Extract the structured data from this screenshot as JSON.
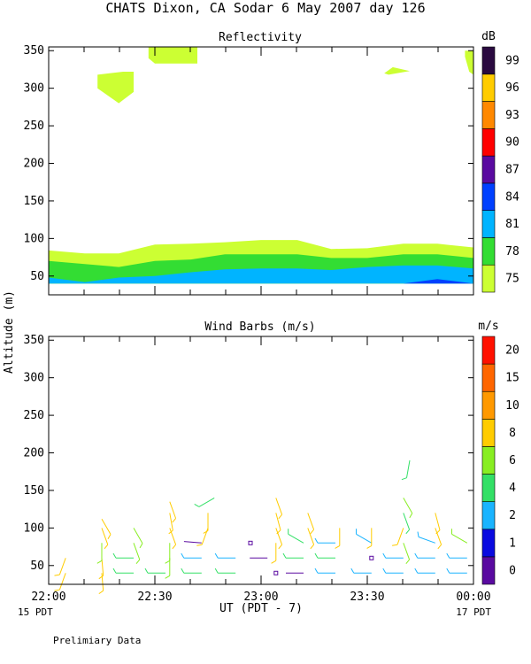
{
  "title": "CHATS Dixon, CA  Sodar   6 May 2007  day 126",
  "footer_note": "Prelimiary Data",
  "x_axis": {
    "label": "UT  (PDT - 7)",
    "ticks": [
      "22:00",
      "22:30",
      "23:00",
      "23:30",
      "00:00"
    ],
    "start_date": "15 PDT",
    "end_date": "17 PDT",
    "range_hours": [
      22.0,
      24.0
    ]
  },
  "y_axis_label": "Altitude (m)",
  "chart_data": [
    {
      "type": "heatmap",
      "title": "Reflectivity",
      "ylabel": "Altitude (m)",
      "ylim": [
        25,
        355
      ],
      "yticks": [
        50,
        100,
        150,
        200,
        250,
        300,
        350
      ],
      "colorbar": {
        "unit": "dB",
        "ticks": [
          "75",
          "78",
          "81",
          "84",
          "87",
          "90",
          "93",
          "96",
          "99"
        ],
        "colors": [
          "#ccff33",
          "#33dd33",
          "#00b4ff",
          "#0040ff",
          "#5a0aa0",
          "#ff0000",
          "#ff8800",
          "#ffcc00",
          "#2a0a40"
        ]
      },
      "bands": [
        {
          "level": "75",
          "x": [
            22.0,
            22.17,
            22.33,
            22.5,
            22.67,
            22.83,
            23.0,
            23.17,
            23.33,
            23.5,
            23.67,
            23.83,
            24.0
          ],
          "top": [
            84,
            80,
            80,
            92,
            93,
            95,
            98,
            98,
            86,
            87,
            93,
            93,
            88
          ],
          "bottom": [
            40,
            40,
            40,
            40,
            40,
            40,
            40,
            40,
            40,
            40,
            40,
            40,
            40
          ]
        },
        {
          "level": "78",
          "x": [
            22.0,
            22.17,
            22.33,
            22.5,
            22.67,
            22.83,
            23.0,
            23.17,
            23.33,
            23.5,
            23.67,
            23.83,
            24.0
          ],
          "top": [
            70,
            66,
            62,
            70,
            72,
            79,
            79,
            79,
            74,
            74,
            79,
            79,
            74
          ],
          "bottom": [
            40,
            40,
            40,
            40,
            40,
            40,
            40,
            40,
            40,
            40,
            40,
            40,
            40
          ]
        },
        {
          "level": "81",
          "x": [
            22.0,
            22.17,
            22.33,
            22.5,
            22.67,
            22.83,
            23.0,
            23.17,
            23.33,
            23.5,
            23.67,
            23.83,
            24.0
          ],
          "top": [
            48,
            42,
            48,
            50,
            55,
            59,
            60,
            60,
            58,
            62,
            64,
            64,
            60
          ],
          "bottom": [
            40,
            40,
            40,
            40,
            40,
            40,
            40,
            40,
            40,
            40,
            40,
            40,
            40
          ]
        },
        {
          "level": "84",
          "x": [
            23.67,
            23.83,
            24.0
          ],
          "top": [
            40,
            46,
            40
          ],
          "bottom": [
            40,
            40,
            40
          ]
        }
      ],
      "patches": [
        {
          "level": "75",
          "x": [
            22.23,
            22.35,
            22.4,
            22.4,
            22.33,
            22.23
          ],
          "y": [
            318,
            322,
            322,
            295,
            280,
            300
          ]
        },
        {
          "level": "75",
          "x": [
            22.47,
            22.7,
            22.7,
            22.5,
            22.47
          ],
          "y": [
            355,
            355,
            333,
            333,
            340
          ]
        },
        {
          "level": "75",
          "x": [
            23.58,
            23.62,
            23.7,
            23.6,
            23.58
          ],
          "y": [
            320,
            328,
            323,
            318,
            320
          ]
        },
        {
          "level": "75",
          "x": [
            23.96,
            24.0,
            24.0,
            23.98,
            23.96
          ],
          "y": [
            350,
            350,
            318,
            322,
            342
          ]
        }
      ]
    },
    {
      "type": "scatter",
      "title": "Wind Barbs (m/s)",
      "ylabel": "Altitude (m)",
      "ylim": [
        25,
        355
      ],
      "yticks": [
        50,
        100,
        150,
        200,
        250,
        300,
        350
      ],
      "colorbar": {
        "unit": "m/s",
        "ticks": [
          "0",
          "1",
          "2",
          "4",
          "6",
          "8",
          "10",
          "15",
          "20"
        ],
        "colors": [
          "#5a0aa0",
          "#0a0ae0",
          "#1ab4ff",
          "#33e066",
          "#88ee22",
          "#ffcc00",
          "#ff9900",
          "#ff6600",
          "#ff1100"
        ]
      },
      "barbs": [
        {
          "x": 22.08,
          "z": 40,
          "dir": 200,
          "speed": 8
        },
        {
          "x": 22.08,
          "z": 60,
          "dir": 200,
          "speed": 8
        },
        {
          "x": 22.25,
          "z": 40,
          "dir": 175,
          "speed": 9
        },
        {
          "x": 22.25,
          "z": 60,
          "dir": 175,
          "speed": 9
        },
        {
          "x": 22.25,
          "z": 80,
          "dir": 180,
          "speed": 6
        },
        {
          "x": 22.25,
          "z": 100,
          "dir": 160,
          "speed": 8
        },
        {
          "x": 22.25,
          "z": 112,
          "dir": 150,
          "speed": 8
        },
        {
          "x": 22.4,
          "z": 40,
          "dir": 270,
          "speed": 4
        },
        {
          "x": 22.4,
          "z": 60,
          "dir": 270,
          "speed": 4
        },
        {
          "x": 22.4,
          "z": 80,
          "dir": 160,
          "speed": 6
        },
        {
          "x": 22.4,
          "z": 100,
          "dir": 150,
          "speed": 6
        },
        {
          "x": 22.55,
          "z": 40,
          "dir": 270,
          "speed": 4
        },
        {
          "x": 22.57,
          "z": 60,
          "dir": 180,
          "speed": 6
        },
        {
          "x": 22.57,
          "z": 80,
          "dir": 180,
          "speed": 6
        },
        {
          "x": 22.57,
          "z": 100,
          "dir": 160,
          "speed": 8
        },
        {
          "x": 22.57,
          "z": 120,
          "dir": 170,
          "speed": 8
        },
        {
          "x": 22.57,
          "z": 135,
          "dir": 160,
          "speed": 8
        },
        {
          "x": 22.72,
          "z": 40,
          "dir": 270,
          "speed": 5
        },
        {
          "x": 22.72,
          "z": 60,
          "dir": 270,
          "speed": 3
        },
        {
          "x": 22.72,
          "z": 80,
          "dir": 275,
          "speed": 0.5
        },
        {
          "x": 22.75,
          "z": 100,
          "dir": 200,
          "speed": 8
        },
        {
          "x": 22.75,
          "z": 120,
          "dir": 180,
          "speed": 8
        },
        {
          "x": 22.78,
          "z": 140,
          "dir": 240,
          "speed": 4
        },
        {
          "x": 22.88,
          "z": 40,
          "dir": 270,
          "speed": 5
        },
        {
          "x": 22.88,
          "z": 60,
          "dir": 270,
          "speed": 3
        },
        {
          "x": 22.95,
          "z": 80,
          "calm": true,
          "speed": 0.5
        },
        {
          "x": 23.03,
          "z": 60,
          "dir": 270,
          "speed": 0.5
        },
        {
          "x": 23.07,
          "z": 40,
          "calm": true,
          "speed": 0.5
        },
        {
          "x": 23.07,
          "z": 80,
          "dir": 180,
          "speed": 8
        },
        {
          "x": 23.07,
          "z": 100,
          "dir": 160,
          "speed": 8
        },
        {
          "x": 23.07,
          "z": 120,
          "dir": 165,
          "speed": 8
        },
        {
          "x": 23.07,
          "z": 140,
          "dir": 160,
          "speed": 8
        },
        {
          "x": 23.2,
          "z": 40,
          "dir": 270,
          "speed": 0.5
        },
        {
          "x": 23.2,
          "z": 60,
          "dir": 270,
          "speed": 4
        },
        {
          "x": 23.2,
          "z": 80,
          "dir": 300,
          "speed": 4
        },
        {
          "x": 23.22,
          "z": 100,
          "dir": 160,
          "speed": 8
        },
        {
          "x": 23.22,
          "z": 120,
          "dir": 160,
          "speed": 8
        },
        {
          "x": 23.35,
          "z": 40,
          "dir": 270,
          "speed": 3
        },
        {
          "x": 23.35,
          "z": 60,
          "dir": 270,
          "speed": 4
        },
        {
          "x": 23.35,
          "z": 80,
          "dir": 270,
          "speed": 3
        },
        {
          "x": 23.37,
          "z": 100,
          "dir": 180,
          "speed": 8
        },
        {
          "x": 23.52,
          "z": 40,
          "dir": 270,
          "speed": 3
        },
        {
          "x": 23.52,
          "z": 60,
          "calm": true,
          "speed": 0.5
        },
        {
          "x": 23.52,
          "z": 80,
          "dir": 300,
          "speed": 3
        },
        {
          "x": 23.52,
          "z": 100,
          "dir": 180,
          "speed": 8
        },
        {
          "x": 23.67,
          "z": 40,
          "dir": 270,
          "speed": 3
        },
        {
          "x": 23.67,
          "z": 60,
          "dir": 270,
          "speed": 3
        },
        {
          "x": 23.67,
          "z": 80,
          "dir": 160,
          "speed": 6
        },
        {
          "x": 23.67,
          "z": 100,
          "dir": 200,
          "speed": 8
        },
        {
          "x": 23.67,
          "z": 120,
          "dir": 160,
          "speed": 4
        },
        {
          "x": 23.67,
          "z": 140,
          "dir": 150,
          "speed": 6
        },
        {
          "x": 23.7,
          "z": 190,
          "dir": 190,
          "speed": 4
        },
        {
          "x": 23.82,
          "z": 40,
          "dir": 270,
          "speed": 3
        },
        {
          "x": 23.82,
          "z": 60,
          "dir": 270,
          "speed": 3
        },
        {
          "x": 23.82,
          "z": 80,
          "dir": 290,
          "speed": 3
        },
        {
          "x": 23.82,
          "z": 100,
          "dir": 160,
          "speed": 8
        },
        {
          "x": 23.82,
          "z": 120,
          "dir": 165,
          "speed": 8
        },
        {
          "x": 23.97,
          "z": 40,
          "dir": 270,
          "speed": 3
        },
        {
          "x": 23.97,
          "z": 60,
          "dir": 270,
          "speed": 3
        },
        {
          "x": 23.97,
          "z": 80,
          "dir": 300,
          "speed": 6
        }
      ]
    }
  ]
}
